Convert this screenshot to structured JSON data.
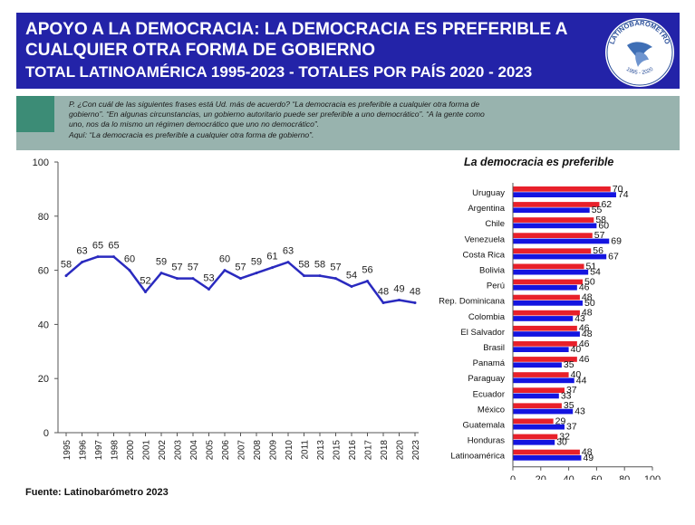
{
  "header": {
    "title_line1": "APOYO A LA DEMOCRACIA: LA DEMOCRACIA ES PREFERIBLE A",
    "title_line2": "CUALQUIER OTRA FORMA DE GOBIERNO",
    "title_line3": "TOTAL LATINOAMÉRICA 1995-2023 - TOTALES POR PAÍS 2020 - 2023",
    "logo_text": "LATINOBARÓMETRO",
    "logo_years": "1995 - 2020"
  },
  "question": {
    "line1": "P. ¿Con cuál de las siguientes frases está Ud. más de acuerdo? “La democracia es preferible a cualquier otra forma de",
    "line2": "gobierno”. “En algunas circunstancias, un gobierno autoritario puede ser preferible a uno democrático”. “A la gente como",
    "line3": "uno, nos da lo mismo un régimen democrático que uno no democrático”.",
    "line4": "Aquí: “La democracia es preferible a cualquier otra forma de gobierno”."
  },
  "footer": {
    "source": "Fuente: Latinobarómetro 2023"
  },
  "colors": {
    "header_bg": "#2323a8",
    "line": "#2a2abf",
    "series_2023": "#e8202a",
    "series_2020": "#1414e0"
  },
  "chart_data": [
    {
      "type": "line",
      "x": [
        "1995",
        "1996",
        "1997",
        "1998",
        "2000",
        "2001",
        "2002",
        "2003",
        "2004",
        "2005",
        "2006",
        "2007",
        "2008",
        "2009",
        "2010",
        "2011",
        "2013",
        "2015",
        "2016",
        "2017",
        "2018",
        "2020",
        "2023"
      ],
      "values": [
        58,
        63,
        65,
        65,
        60,
        52,
        59,
        57,
        57,
        53,
        60,
        57,
        59,
        61,
        63,
        58,
        58,
        57,
        54,
        56,
        48,
        49,
        48
      ],
      "ylim": [
        0,
        100
      ],
      "yticks": [
        0,
        20,
        40,
        60,
        80,
        100
      ],
      "grid": false
    },
    {
      "type": "bar",
      "title": "La democracia es preferible",
      "categories": [
        "Uruguay",
        "Argentina",
        "Chile",
        "Venezuela",
        "Costa Rica",
        "Bolivia",
        "Perú",
        "Rep. Dominicana",
        "Colombia",
        "El Salvador",
        "Brasil",
        "Panamá",
        "Paraguay",
        "Ecuador",
        "México",
        "Guatemala",
        "Honduras",
        "Latinoamérica"
      ],
      "series": [
        {
          "name": "2023",
          "values": [
            70,
            62,
            58,
            57,
            56,
            51,
            50,
            48,
            48,
            46,
            46,
            46,
            40,
            37,
            35,
            29,
            32,
            48
          ]
        },
        {
          "name": "2020",
          "values": [
            74,
            55,
            60,
            69,
            67,
            54,
            46,
            50,
            43,
            48,
            40,
            35,
            44,
            33,
            43,
            37,
            30,
            49
          ]
        }
      ],
      "xlim": [
        0,
        100
      ],
      "xticks": [
        0,
        20,
        40,
        60,
        80,
        100
      ],
      "legend": "bottom"
    }
  ]
}
